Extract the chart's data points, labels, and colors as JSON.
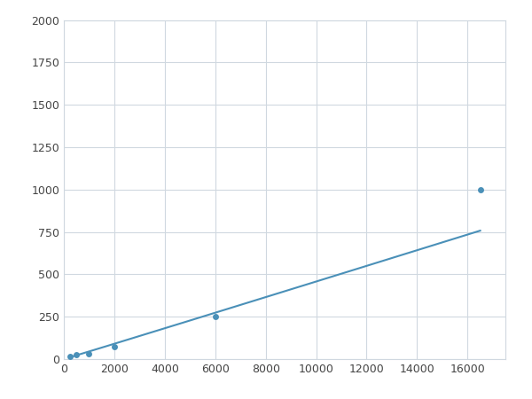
{
  "x": [
    250,
    500,
    1000,
    2000,
    6000,
    16500
  ],
  "y": [
    15,
    25,
    30,
    75,
    250,
    1000
  ],
  "line_color": "#4a90b8",
  "marker_color": "#4a90b8",
  "marker_size": 5,
  "line_width": 1.5,
  "xlim": [
    0,
    17500
  ],
  "ylim": [
    0,
    2000
  ],
  "xticks": [
    0,
    2000,
    4000,
    6000,
    8000,
    10000,
    12000,
    14000,
    16000
  ],
  "yticks": [
    0,
    250,
    500,
    750,
    1000,
    1250,
    1500,
    1750,
    2000
  ],
  "grid_color": "#d0d8e0",
  "background_color": "#ffffff",
  "figure_bg": "#ffffff"
}
